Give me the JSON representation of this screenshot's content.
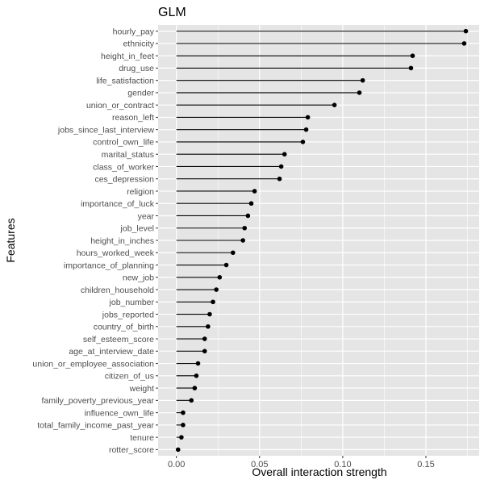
{
  "chart_data": {
    "type": "lollipop",
    "title": "GLM",
    "xlabel": "Overall interaction strength",
    "ylabel": "Features",
    "xlim": [
      -0.011,
      0.182
    ],
    "x_ticks": [
      0.0,
      0.05,
      0.1,
      0.15
    ],
    "x_tick_labels": [
      "0.00",
      "0.05",
      "0.10",
      "0.15"
    ],
    "grid": true,
    "categories": [
      "hourly_pay",
      "ethnicity",
      "height_in_feet",
      "drug_use",
      "life_satisfaction",
      "gender",
      "union_or_contract",
      "reason_left",
      "jobs_since_last_interview",
      "control_own_life",
      "marital_status",
      "class_of_worker",
      "ces_depression",
      "religion",
      "importance_of_luck",
      "year",
      "job_level",
      "height_in_inches",
      "hours_worked_week",
      "importance_of_planning",
      "new_job",
      "children_household",
      "job_number",
      "jobs_reported",
      "country_of_birth",
      "self_esteem_score",
      "age_at_interview_date",
      "union_or_employee_association",
      "citizen_of_us",
      "weight",
      "family_poverty_previous_year",
      "influence_own_life",
      "total_family_income_past_year",
      "tenure",
      "rotter_score"
    ],
    "values": [
      0.174,
      0.173,
      0.142,
      0.141,
      0.112,
      0.11,
      0.095,
      0.079,
      0.078,
      0.076,
      0.065,
      0.063,
      0.062,
      0.047,
      0.045,
      0.043,
      0.041,
      0.04,
      0.034,
      0.03,
      0.026,
      0.024,
      0.022,
      0.02,
      0.019,
      0.017,
      0.017,
      0.013,
      0.012,
      0.011,
      0.009,
      0.004,
      0.004,
      0.003,
      0.001
    ]
  },
  "colors": {
    "panel_bg": "#e5e5e5",
    "grid": "#ffffff",
    "point": "#000000",
    "segment": "#000000"
  }
}
